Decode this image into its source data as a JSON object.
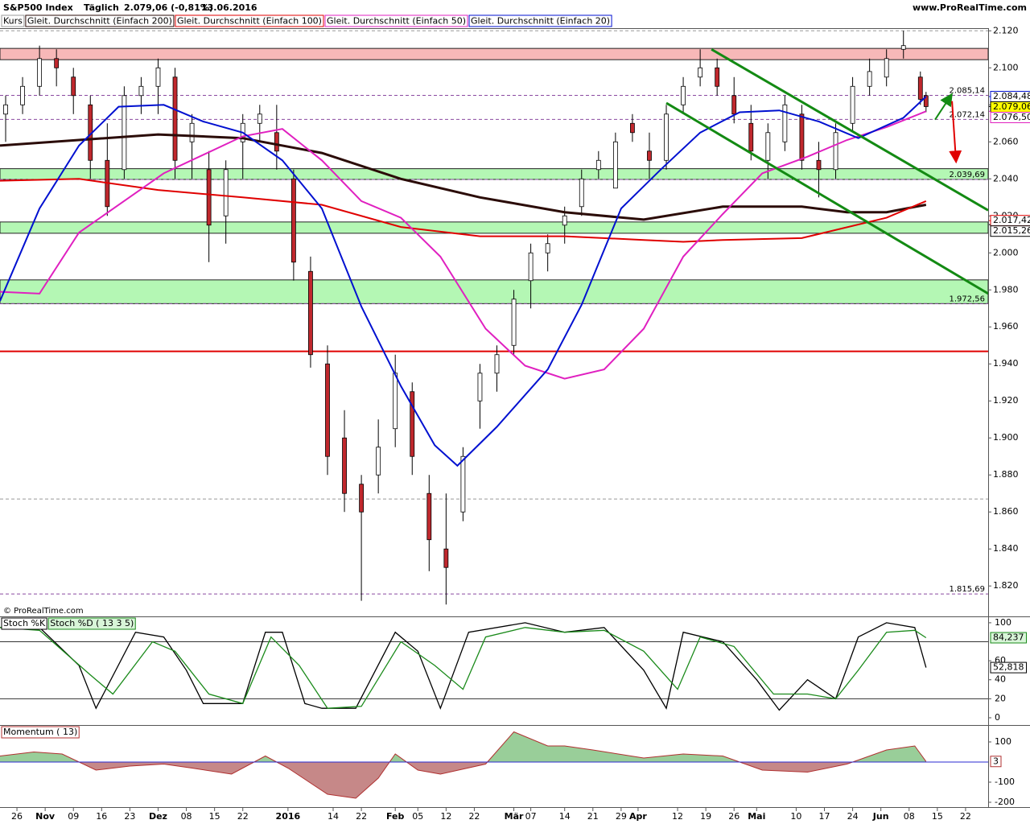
{
  "header": {
    "instrument": "S&P500 Index",
    "period": "Täglich",
    "quote": "2.079,06 (-0,81%)",
    "date": "13.06.2016",
    "site": "www.ProRealTime.com",
    "copyright": "© ProRealTime.com"
  },
  "chart_data": [
    {
      "type": "candlestick",
      "xlim": [
        0,
        175
      ],
      "xticks": [
        {
          "value": 3,
          "label": "26"
        },
        {
          "value": 8,
          "label": "Nov",
          "bold": true
        },
        {
          "value": 13,
          "label": "09"
        },
        {
          "value": 18,
          "label": "16"
        },
        {
          "value": 23,
          "label": "23"
        },
        {
          "value": 28,
          "label": "Dez",
          "bold": true
        },
        {
          "value": 33,
          "label": "08"
        },
        {
          "value": 38,
          "label": "15"
        },
        {
          "value": 43,
          "label": "22"
        },
        {
          "value": 51,
          "label": "2016",
          "bold": true
        },
        {
          "value": 59,
          "label": "14"
        },
        {
          "value": 64,
          "label": "22"
        },
        {
          "value": 70,
          "label": "Feb",
          "bold": true
        },
        {
          "value": 74,
          "label": "05"
        },
        {
          "value": 79,
          "label": "12"
        },
        {
          "value": 84,
          "label": "22"
        },
        {
          "value": 91,
          "label": "Mär",
          "bold": true
        },
        {
          "value": 94,
          "label": "07"
        },
        {
          "value": 100,
          "label": "14"
        },
        {
          "value": 105,
          "label": "21"
        },
        {
          "value": 110,
          "label": "29"
        },
        {
          "value": 113,
          "label": "Apr",
          "bold": true
        },
        {
          "value": 120,
          "label": "12"
        },
        {
          "value": 125,
          "label": "19"
        },
        {
          "value": 130,
          "label": "26"
        },
        {
          "value": 134,
          "label": "Mai",
          "bold": true
        },
        {
          "value": 141,
          "label": "10"
        },
        {
          "value": 146,
          "label": "17"
        },
        {
          "value": 151,
          "label": "24"
        },
        {
          "value": 156,
          "label": "Jun",
          "bold": true
        },
        {
          "value": 161,
          "label": "08"
        },
        {
          "value": 166,
          "label": "15"
        },
        {
          "value": 171,
          "label": "22"
        }
      ],
      "ylim": [
        1804,
        2121
      ],
      "yticks": [
        {
          "value": 2120,
          "label": "2.120"
        },
        {
          "value": 2100,
          "label": "2.100"
        },
        {
          "value": 2080,
          "label": "2.080"
        },
        {
          "value": 2060,
          "label": "2.060"
        },
        {
          "value": 2040,
          "label": "2.040"
        },
        {
          "value": 2020,
          "label": "2.020"
        },
        {
          "value": 2000,
          "label": "2.000"
        },
        {
          "value": 1980,
          "label": "1.980"
        },
        {
          "value": 1960,
          "label": "1.960"
        },
        {
          "value": 1940,
          "label": "1.940"
        },
        {
          "value": 1920,
          "label": "1.920"
        },
        {
          "value": 1900,
          "label": "1.900"
        },
        {
          "value": 1880,
          "label": "1.880"
        },
        {
          "value": 1860,
          "label": "1.860"
        },
        {
          "value": 1840,
          "label": "1.840"
        },
        {
          "value": 1820,
          "label": "1.820"
        }
      ],
      "candles": {
        "name": "Kurs",
        "color": "#999999",
        "up_color": "#ffffff",
        "down_color": "#c0282d",
        "x": [
          1,
          4,
          7,
          10,
          13,
          16,
          19,
          22,
          25,
          28,
          31,
          34,
          37,
          40,
          43,
          46,
          49,
          52,
          55,
          58,
          61,
          64,
          67,
          70,
          73,
          76,
          79,
          82,
          85,
          88,
          91,
          94,
          97,
          100,
          103,
          106,
          109,
          112,
          115,
          118,
          121,
          124,
          127,
          130,
          133,
          136,
          139,
          142,
          145,
          148,
          151,
          154,
          157,
          160,
          163,
          164
        ],
        "open": [
          2075,
          2080,
          2090,
          2105,
          2095,
          2080,
          2050,
          2045,
          2085,
          2090,
          2095,
          2060,
          2045,
          2020,
          2060,
          2070,
          2065,
          2040,
          1990,
          1940,
          1900,
          1875,
          1880,
          1905,
          1925,
          1870,
          1840,
          1860,
          1920,
          1935,
          1950,
          1985,
          2000,
          2015,
          2025,
          2045,
          2035,
          2070,
          2055,
          2050,
          2080,
          2095,
          2100,
          2085,
          2070,
          2050,
          2060,
          2075,
          2050,
          2045,
          2070,
          2090,
          2095,
          2110,
          2095,
          2085
        ],
        "high": [
          2085,
          2095,
          2112,
          2110,
          2100,
          2085,
          2070,
          2090,
          2095,
          2105,
          2100,
          2075,
          2055,
          2050,
          2075,
          2080,
          2080,
          2045,
          1998,
          1950,
          1915,
          1880,
          1910,
          1945,
          1930,
          1880,
          1870,
          1895,
          1940,
          1950,
          1980,
          2005,
          2010,
          2025,
          2045,
          2055,
          2065,
          2075,
          2065,
          2080,
          2095,
          2110,
          2105,
          2095,
          2080,
          2070,
          2085,
          2080,
          2060,
          2070,
          2095,
          2105,
          2110,
          2120,
          2098,
          2087
        ],
        "low": [
          2060,
          2075,
          2085,
          2090,
          2075,
          2040,
          2020,
          2040,
          2075,
          2075,
          2040,
          2040,
          1995,
          2005,
          2040,
          2060,
          2045,
          1985,
          1938,
          1880,
          1860,
          1812,
          1870,
          1895,
          1880,
          1828,
          1810,
          1855,
          1905,
          1925,
          1945,
          1970,
          1990,
          2005,
          2020,
          2040,
          2035,
          2060,
          2040,
          2045,
          2075,
          2090,
          2085,
          2070,
          2050,
          2040,
          2055,
          2045,
          2030,
          2040,
          2065,
          2085,
          2090,
          2105,
          2080,
          2076
        ],
        "close": [
          2080,
          2090,
          2105,
          2100,
          2085,
          2050,
          2025,
          2085,
          2090,
          2100,
          2050,
          2070,
          2015,
          2045,
          2070,
          2075,
          2055,
          1995,
          1945,
          1890,
          1870,
          1860,
          1895,
          1935,
          1890,
          1845,
          1830,
          1890,
          1935,
          1945,
          1975,
          2000,
          2005,
          2020,
          2040,
          2050,
          2060,
          2065,
          2050,
          2075,
          2090,
          2100,
          2090,
          2075,
          2055,
          2065,
          2080,
          2050,
          2045,
          2065,
          2090,
          2098,
          2105,
          2112,
          2083,
          2079.06
        ]
      },
      "series": [
        {
          "name": "Gleit. Durchschnitt (Einfach 200)",
          "color": "#2b0c08",
          "width": 3,
          "x": [
            0,
            28,
            43,
            57,
            71,
            85,
            100,
            114,
            128,
            142,
            150,
            157,
            164
          ],
          "values": [
            2058,
            2064,
            2062,
            2054,
            2040,
            2030,
            2022,
            2018,
            2025,
            2025,
            2022,
            2022,
            2026
          ]
        },
        {
          "name": "Gleit. Durchschnitt (Einfach 100)",
          "color": "#e00000",
          "width": 2,
          "x": [
            0,
            14,
            28,
            43,
            57,
            71,
            85,
            100,
            114,
            121,
            128,
            142,
            157,
            164
          ],
          "values": [
            2039,
            2040,
            2034,
            2030,
            2026,
            2014,
            2009,
            2009,
            2007,
            2006,
            2007,
            2008,
            2019,
            2028
          ]
        },
        {
          "name": "Gleit. Durchschnitt (Einfach 50)",
          "color": "#e020c0",
          "width": 2,
          "x": [
            0,
            7,
            14,
            29,
            43,
            50,
            57,
            64,
            71,
            78,
            86,
            93,
            100,
            107,
            114,
            121,
            128,
            135,
            143,
            150,
            157,
            164
          ],
          "values": [
            1979,
            1978,
            2011,
            2043,
            2063,
            2067,
            2050,
            2028,
            2019,
            1998,
            1959,
            1939,
            1932,
            1937,
            1959,
            1998,
            2021,
            2043,
            2052,
            2061,
            2068,
            2076.5
          ]
        },
        {
          "name": "Gleit. Durchschnitt (Einfach 20)",
          "color": "#0010d0",
          "width": 2,
          "x": [
            0,
            7,
            14,
            21,
            29,
            36,
            43,
            50,
            57,
            64,
            71,
            77,
            81,
            88,
            97,
            103,
            110,
            117,
            124,
            131,
            138,
            145,
            152,
            160,
            164
          ],
          "values": [
            1974,
            2024,
            2058,
            2079,
            2080,
            2071,
            2065,
            2050,
            2024,
            1971,
            1928,
            1896,
            1885,
            1906,
            1937,
            1972,
            2024,
            2045,
            2065,
            2076,
            2077,
            2071,
            2062,
            2073,
            2084.48
          ]
        }
      ],
      "zones": [
        {
          "from": 2104.4,
          "to": 2110.5,
          "color": "#f7b8b8"
        },
        {
          "from": 2039.69,
          "to": 2045.5,
          "color": "#b4f7b4"
        },
        {
          "from": 2010.6,
          "to": 2016.7,
          "color": "#b4f7b4"
        },
        {
          "from": 1972.56,
          "to": 1985.4,
          "color": "#b4f7b4"
        }
      ],
      "hlines": [
        {
          "value": 1946.8,
          "color": "#e00000"
        }
      ],
      "dashed_lines": [
        2120,
        1867
      ],
      "levels": [
        {
          "value": 2085.14,
          "label": "2.085,14",
          "color": "#2e7d32"
        },
        {
          "value": 2072.14,
          "label": "2.072,14",
          "color": "#2e7d32"
        },
        {
          "value": 2039.69,
          "label": "2.039,69",
          "color": "#2e7d32"
        },
        {
          "value": 1972.56,
          "label": "1.972,56",
          "color": "#2e7d32"
        },
        {
          "value": 1815.69,
          "label": "1.815,69",
          "color": "#333333"
        }
      ],
      "axis_labels": [
        {
          "value": 2084.48,
          "label": "2.084,48",
          "color": "#0010d0",
          "bg": "#ffffff"
        },
        {
          "value": 2079.06,
          "label": "2.079,06",
          "color": "#000000",
          "bg": "#ffff00"
        },
        {
          "value": 2076.5,
          "label": "2.076,50",
          "color": "#e020c0",
          "bg": "#ffffff"
        },
        {
          "value": 2017.42,
          "label": "2.017,42",
          "color": "#e00000",
          "bg": "#ffffff"
        },
        {
          "value": 2015.26,
          "label": "2.015,26",
          "color": "#000000",
          "bg": "#ffffff"
        }
      ],
      "trendlines": [
        {
          "x": [
            126,
            175
          ],
          "y": [
            2110,
            2023
          ],
          "color": "#138a13"
        },
        {
          "x": [
            118,
            175
          ],
          "y": [
            2081,
            1978
          ],
          "color": "#138a13"
        }
      ],
      "arrows": [
        {
          "x": [
            165.6,
            168.4
          ],
          "y": [
            2072,
            2085
          ],
          "color": "#138a13"
        },
        {
          "x": [
            168.6,
            169.3
          ],
          "y": [
            2082,
            2050
          ],
          "color": "#e00000"
        }
      ]
    },
    {
      "type": "line",
      "ylim": [
        -6.8,
        105
      ],
      "yticks": [
        100,
        60,
        40,
        20,
        0
      ],
      "hlines": [
        80,
        20
      ],
      "series": [
        {
          "name": "Stoch %K",
          "color": "#000000",
          "label_bg": "#ffffff",
          "x": [
            0,
            7,
            14,
            17,
            24,
            29,
            33,
            36,
            43,
            47,
            50,
            54,
            57,
            63,
            70,
            74,
            78,
            83,
            93,
            100,
            107,
            114,
            118,
            121,
            128,
            134,
            138,
            143,
            148,
            152,
            157,
            162,
            164
          ],
          "values": [
            95,
            95,
            55,
            10,
            90,
            85,
            50,
            15,
            15,
            90,
            90,
            15,
            10,
            10,
            90,
            70,
            10,
            90,
            100,
            90,
            95,
            50,
            10,
            90,
            80,
            40,
            8,
            40,
            20,
            85,
            100,
            95,
            52.818
          ],
          "last": {
            "value": 52.818,
            "label": "52,818"
          }
        },
        {
          "name": "Stoch %D ( 13 3 5)",
          "color": "#1a8a1a",
          "label_bg": "#d8f5d8",
          "x": [
            0,
            7,
            16,
            20,
            27,
            31,
            37,
            43,
            48,
            53,
            58,
            64,
            71,
            77,
            82,
            86,
            93,
            100,
            107,
            114,
            120,
            124,
            130,
            137,
            143,
            148,
            152,
            157,
            162,
            164
          ],
          "values": [
            95,
            92,
            45,
            25,
            80,
            70,
            25,
            15,
            85,
            55,
            10,
            12,
            80,
            55,
            30,
            85,
            95,
            90,
            92,
            70,
            30,
            85,
            75,
            25,
            25,
            20,
            50,
            90,
            92,
            84.237
          ],
          "last": {
            "value": 84.237,
            "label": "84,237"
          }
        }
      ]
    },
    {
      "type": "area",
      "ylim": [
        -224,
        176
      ],
      "yticks": [
        100,
        -100,
        -200
      ],
      "zero_color": "#2a2ad0",
      "series": [
        {
          "name": "Momentum ( 13)",
          "color": "#b03030",
          "pos_color": "#7fc27f",
          "neg_color": "#b86a6a",
          "x": [
            0,
            6,
            11,
            17,
            23,
            29,
            34,
            41,
            47,
            51,
            58,
            63,
            67,
            70,
            74,
            78,
            86,
            91,
            97,
            100,
            105,
            114,
            121,
            128,
            135,
            143,
            150,
            157,
            162,
            164
          ],
          "values": [
            30,
            50,
            40,
            -40,
            -20,
            -10,
            -30,
            -60,
            30,
            -30,
            -160,
            -180,
            -80,
            40,
            -40,
            -60,
            -10,
            150,
            80,
            80,
            60,
            20,
            40,
            30,
            -40,
            -50,
            -10,
            60,
            80,
            3
          ],
          "last": {
            "value": 3,
            "label": "3"
          }
        }
      ]
    }
  ]
}
